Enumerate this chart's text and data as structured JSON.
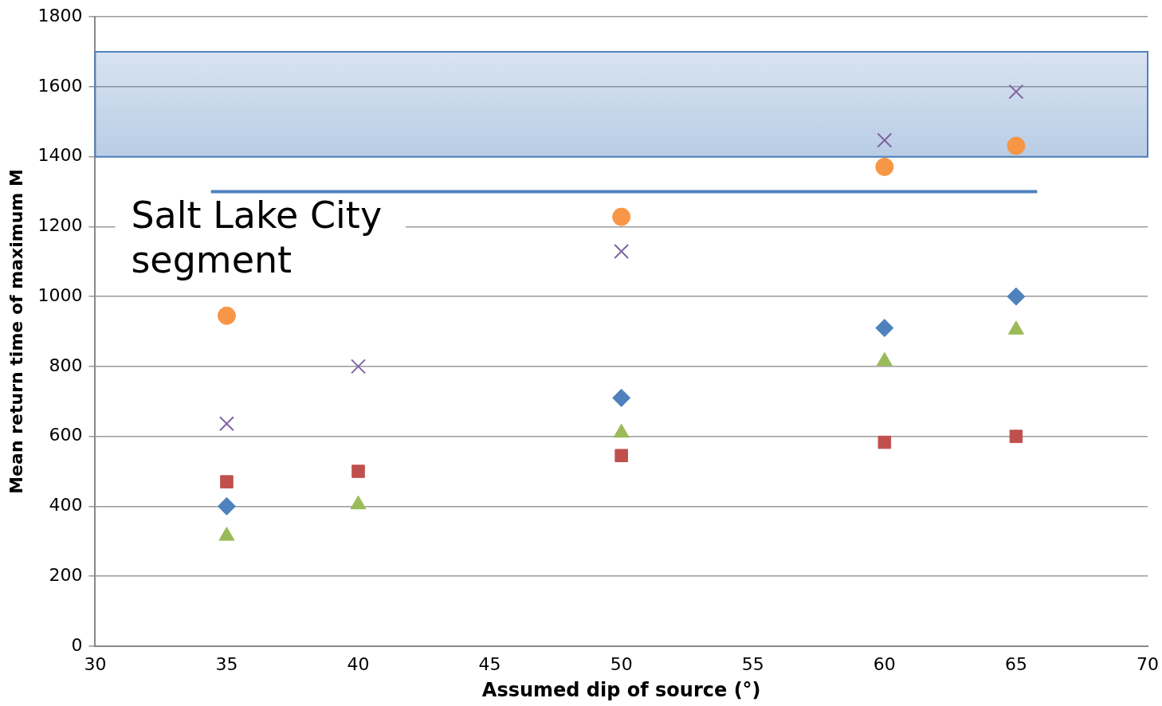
{
  "chart_data": {
    "type": "scatter",
    "xlabel": "Assumed dip of source (°)",
    "ylabel": "Mean return time of maximum M",
    "x": [
      35,
      40,
      50,
      60,
      65
    ],
    "xlim": [
      30,
      70
    ],
    "xticks": [
      30,
      35,
      40,
      45,
      50,
      55,
      60,
      65,
      70
    ],
    "ylim": [
      0,
      1800
    ],
    "yticks": [
      0,
      200,
      400,
      600,
      800,
      1000,
      1200,
      1400,
      1600,
      1800
    ],
    "grid": "y",
    "legend": false,
    "bands": [
      {
        "axis": "y",
        "from": 1400,
        "to": 1700,
        "color": "#4f81bd"
      }
    ],
    "annotations": [
      "Salt Lake City\nsegment"
    ],
    "series": [
      {
        "type": "line",
        "x": [
          34.4,
          65.8
        ],
        "values": [
          1300,
          1300
        ],
        "color": "#4f81bd",
        "marker": "none"
      },
      {
        "color": "#4f81bd",
        "marker": "diamond",
        "values": [
          400,
          null,
          710,
          910,
          1000
        ]
      },
      {
        "color": "#c0504d",
        "marker": "square",
        "values": [
          470,
          500,
          545,
          583,
          600
        ]
      },
      {
        "color": "#9bbb59",
        "marker": "triangle",
        "values": [
          315,
          405,
          610,
          815,
          905
        ]
      },
      {
        "color": "#8064a2",
        "marker": "cross",
        "values": [
          636,
          800,
          1129,
          1447,
          1586
        ]
      },
      {
        "color": "#f79646",
        "marker": "circle",
        "values": [
          945,
          null,
          1228,
          1371,
          1431
        ]
      }
    ]
  }
}
